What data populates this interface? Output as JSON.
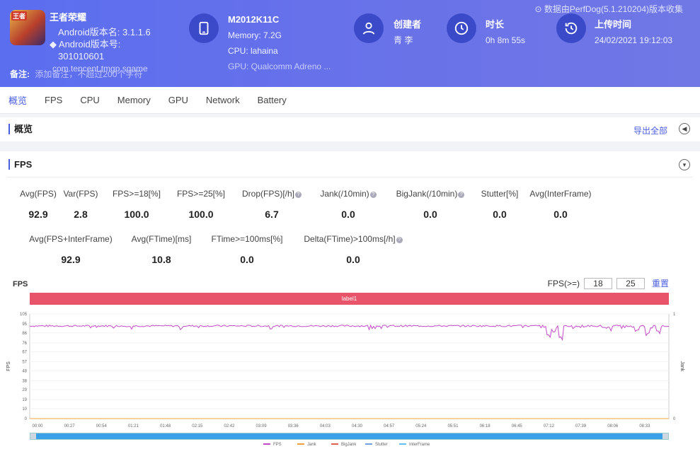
{
  "header": {
    "data_source": "⊙ 数据由PerfDog(5.1.210204)版本收集",
    "app_logo_text": "王者",
    "app_name": "王者荣耀",
    "android_version_label": "Android版本名: 3.1.1.6",
    "android_code_label": "◆ Android版本号:",
    "android_code_value": "301010601",
    "note_label": "备注:",
    "note_placeholder": "添加备注，不超过200个字符",
    "package_name": "com.tencent.tmgp.sgame",
    "device": {
      "model": "M2012K11C",
      "memory": "Memory: 7.2G",
      "cpu": "CPU: lahaina",
      "gpu": "GPU: Qualcomm Adreno ..."
    },
    "creator": {
      "title": "创建者",
      "value": "青 李"
    },
    "duration": {
      "title": "时长",
      "value": "0h 8m 55s"
    },
    "upload": {
      "title": "上传时间",
      "value": "24/02/2021 19:12:03"
    }
  },
  "tabs": [
    "概览",
    "FPS",
    "CPU",
    "Memory",
    "GPU",
    "Network",
    "Battery"
  ],
  "overview": {
    "title": "概览",
    "export": "导出全部"
  },
  "fps_panel": {
    "title": "FPS",
    "metrics_row1": [
      {
        "label": "Avg(FPS)",
        "value": "92.9"
      },
      {
        "label": "Var(FPS)",
        "value": "2.8"
      },
      {
        "label": "FPS>=18[%]",
        "value": "100.0"
      },
      {
        "label": "FPS>=25[%]",
        "value": "100.0"
      },
      {
        "label": "Drop(FPS)[/h]",
        "value": "6.7",
        "help": true
      },
      {
        "label": "Jank(/10min)",
        "value": "0.0",
        "help": true
      },
      {
        "label": "BigJank(/10min)",
        "value": "0.0",
        "help": true
      },
      {
        "label": "Stutter[%]",
        "value": "0.0"
      },
      {
        "label": "Avg(InterFrame)",
        "value": "0.0"
      }
    ],
    "metrics_row2": [
      {
        "label": "Avg(FPS+InterFrame)",
        "value": "92.9"
      },
      {
        "label": "Avg(FTime)[ms]",
        "value": "10.8"
      },
      {
        "label": "FTime>=100ms[%]",
        "value": "0.0"
      },
      {
        "label": "Delta(FTime)>100ms[/h]",
        "value": "0.0",
        "help": true
      }
    ],
    "chart_label": "FPS",
    "filter_label": "FPS(>=)",
    "filter_values": [
      "18",
      "25"
    ],
    "reset_label": "重置",
    "band_label": "label1"
  },
  "chart_data": {
    "type": "line",
    "title": "FPS",
    "ylabel": "FPS",
    "ylabel_right": "Jank",
    "ylim": [
      0,
      105
    ],
    "y_ticks": [
      "0",
      "10",
      "19",
      "29",
      "38",
      "48",
      "57",
      "67",
      "76",
      "86",
      "95",
      "105"
    ],
    "y2_ticks": [
      "0",
      "1"
    ],
    "x_ticks": [
      "00:00",
      "00:27",
      "00:54",
      "01:21",
      "01:48",
      "02:15",
      "02:42",
      "03:09",
      "03:36",
      "04:03",
      "04:30",
      "04:57",
      "05:24",
      "05:51",
      "06:18",
      "06:45",
      "07:12",
      "07:39",
      "08:06",
      "08:33"
    ],
    "legend": [
      "FPS",
      "Jank",
      "BigJank",
      "Stutter",
      "InterFrame"
    ],
    "legend_placement": "bottom",
    "series": [
      {
        "name": "FPS",
        "color": "#c24ac8",
        "baseline": 93,
        "dips": [
          [
            7.22,
            84
          ],
          [
            7.3,
            87
          ],
          [
            7.4,
            82
          ],
          [
            8.45,
            89
          ],
          [
            8.6,
            86
          ],
          [
            8.75,
            88
          ]
        ]
      },
      {
        "name": "Jank",
        "color": "#f0a040",
        "values": [
          0
        ]
      },
      {
        "name": "BigJank",
        "color": "#e06050",
        "values": [
          0
        ]
      },
      {
        "name": "Stutter",
        "color": "#70a0e0",
        "values": [
          0
        ]
      },
      {
        "name": "InterFrame",
        "color": "#60c0f0",
        "values": [
          0
        ]
      }
    ],
    "x_range_min": [
      0,
      8.9
    ]
  }
}
